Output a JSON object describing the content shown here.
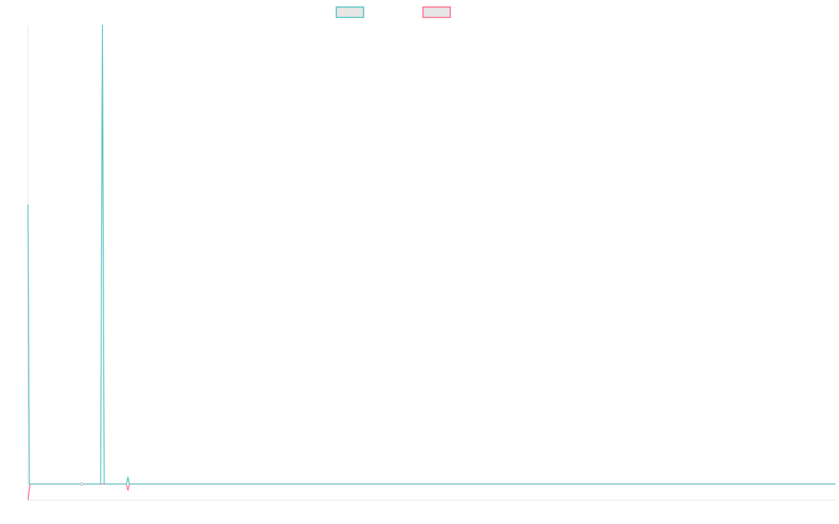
{
  "chart_data": {
    "type": "line",
    "title": "",
    "xlabel": "",
    "ylabel": "",
    "xlim": [
      0,
      100
    ],
    "ylim": [
      0,
      100
    ],
    "grid": false,
    "legend_placement": "top",
    "series": [
      {
        "color": "#4bc0c0",
        "points": [
          [
            0,
            62.2
          ],
          [
            0.17,
            3.4
          ],
          [
            6.67,
            3.4
          ],
          [
            9.0,
            3.4
          ],
          [
            9.22,
            100
          ],
          [
            9.44,
            3.4
          ],
          [
            12.2,
            3.4
          ],
          [
            12.38,
            4.9
          ],
          [
            12.55,
            3.4
          ],
          [
            100,
            3.4
          ]
        ],
        "marker_at": [
          6.67,
          3.4
        ]
      },
      {
        "color": "#ff6384",
        "points": [
          [
            0,
            0
          ],
          [
            0.26,
            3.4
          ],
          [
            12.2,
            3.4
          ],
          [
            12.38,
            2.1
          ],
          [
            12.55,
            3.4
          ],
          [
            100,
            3.4
          ]
        ]
      }
    ]
  }
}
